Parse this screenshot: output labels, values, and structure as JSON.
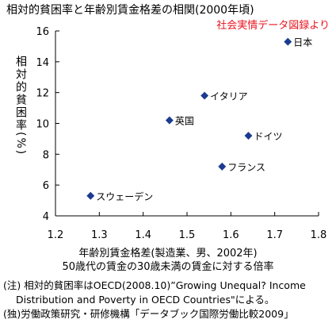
{
  "title": "相対的貧困率と年齢別賃金格差の相関(2000年頃)",
  "source_label": "社会実情データ図録より",
  "chart_data": {
    "type": "scatter",
    "xlabel_line1": "年齢別賃金格差(製造業、男、2002年)",
    "xlabel_line2": "50歳代の賃金の30歳未満の賃金に対する倍率",
    "ylabel": "相対的貧困率(%)",
    "xlim": [
      1.2,
      1.8
    ],
    "ylim": [
      4,
      16
    ],
    "x_ticks": [
      "1.2",
      "1.3",
      "1.4",
      "1.5",
      "1.6",
      "1.7",
      "1.8"
    ],
    "y_ticks": [
      "4",
      "6",
      "8",
      "10",
      "12",
      "14",
      "16"
    ],
    "grid": false,
    "marker_color": "#1a3b8f",
    "points": [
      {
        "label": "日本",
        "x": 1.73,
        "y": 15.3
      },
      {
        "label": "イタリア",
        "x": 1.54,
        "y": 11.8
      },
      {
        "label": "英国",
        "x": 1.46,
        "y": 10.2
      },
      {
        "label": "ドイツ",
        "x": 1.64,
        "y": 9.2
      },
      {
        "label": "フランス",
        "x": 1.58,
        "y": 7.2
      },
      {
        "label": "スウェーデン",
        "x": 1.28,
        "y": 5.3
      }
    ]
  },
  "notes": {
    "line1": "(注) 相対的貧困率はOECD(2008.10)”Growing Unequal? Income",
    "line2": "Distribution and Poverty in OECD Countries\"による。",
    "line3": "(独)労働政策研究・研修機構「データブック国際労働比較2009」"
  }
}
